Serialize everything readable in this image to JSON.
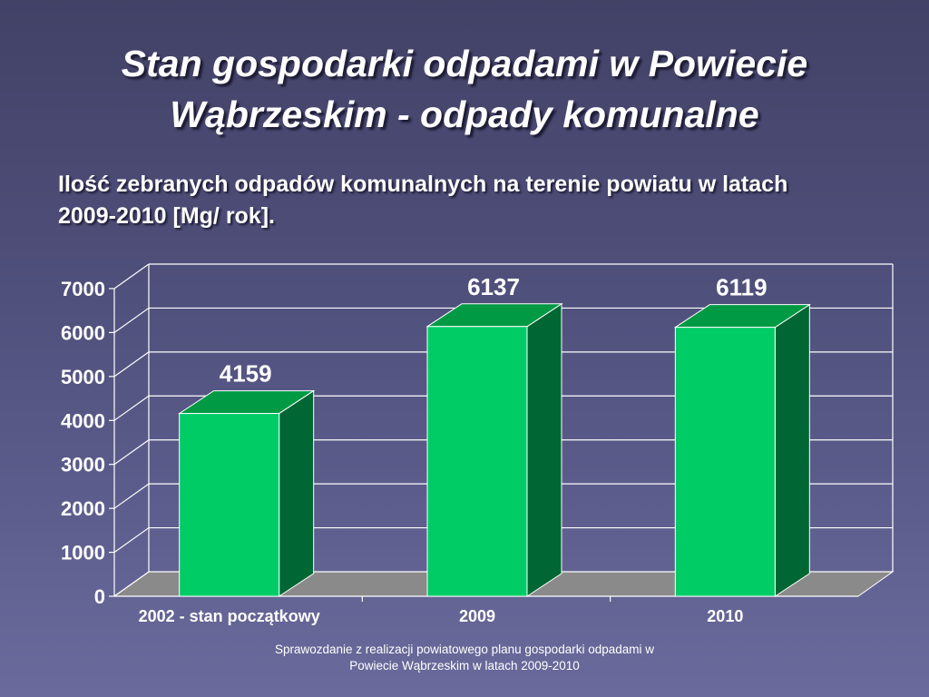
{
  "slide": {
    "title_line1": "Stan gospodarki odpadami w Powiecie",
    "title_line2": "Wąbrzeskim - odpady komunalne",
    "subtitle_line1": "Ilość zebranych odpadów komunalnych na terenie powiatu w latach",
    "subtitle_line2": "2009-2010 [Mg/ rok].",
    "footer_line1": "Sprawozdanie z realizacji powiatowego planu gospodarki odpadami w",
    "footer_line2": "Powiecie Wąbrzeskim w latach 2009-2010"
  },
  "chart_data": {
    "type": "bar",
    "style": "3d-column",
    "categories": [
      "2002 - stan początkowy",
      "2009",
      "2010"
    ],
    "values": [
      4159,
      6137,
      6119
    ],
    "data_labels": [
      "4159",
      "6137",
      "6119"
    ],
    "ylim": [
      0,
      7000
    ],
    "yticks": [
      0,
      1000,
      2000,
      3000,
      4000,
      5000,
      6000,
      7000
    ],
    "ytick_labels": [
      "0",
      "1000",
      "2000",
      "3000",
      "4000",
      "5000",
      "6000",
      "7000"
    ],
    "grid": true,
    "legend": "none",
    "colors": {
      "bar_front": "#00cc66",
      "bar_top": "#009944",
      "bar_side": "#006633",
      "floor": "#8a8a8a",
      "grid": "#ffffff"
    }
  }
}
